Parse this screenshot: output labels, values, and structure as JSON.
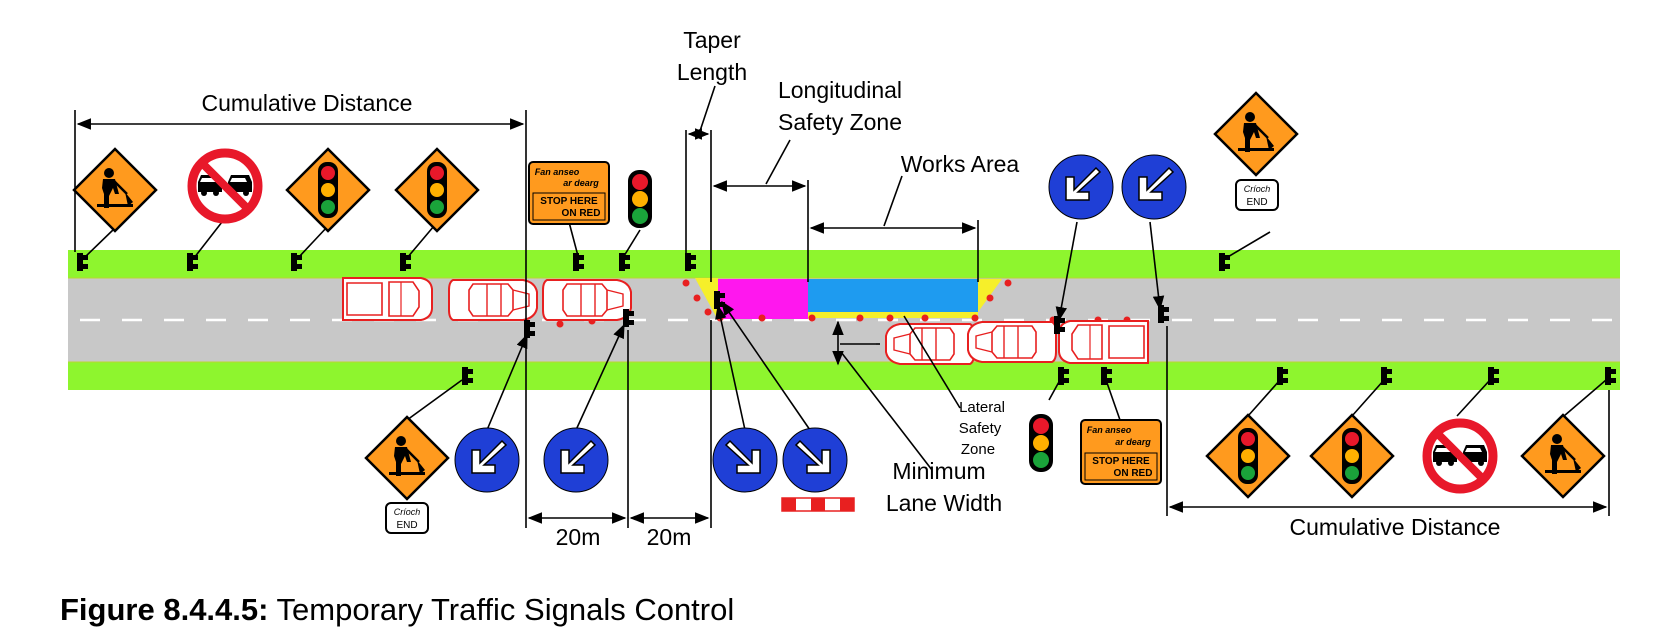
{
  "labels": {
    "cumulative_distance_left": "Cumulative Distance",
    "cumulative_distance_right": "Cumulative Distance",
    "taper_length_line1": "Taper",
    "taper_length_line2": "Length",
    "longitudinal_line1": "Longitudinal",
    "longitudinal_line2": "Safety Zone",
    "works_area": "Works Area",
    "lateral_line1": "Lateral",
    "lateral_line2": "Safety",
    "lateral_line3": "Zone",
    "minimum_line1": "Minimum",
    "minimum_line2": "Lane Width",
    "dist_20m_a": "20m",
    "dist_20m_b": "20m"
  },
  "signs": {
    "stop_here_line1": "Fan anseo",
    "stop_here_line2": "ar dearg",
    "stop_here_line3": "STOP HERE",
    "stop_here_line4": "ON RED",
    "end_line1": "Críoch",
    "end_line2": "END"
  },
  "caption": {
    "number": "Figure 8.4.4.5:",
    "title": "Temporary Traffic Signals Control"
  },
  "colors": {
    "verge": "#8ef52e",
    "road": "#c8c8c8",
    "warning_sign": "#ff9a1e",
    "keep_left_sign": "#1f3fd6",
    "prohibition_red": "#e8182a",
    "works_area": "#1e9bf0",
    "taper_zone": "#ff17ee",
    "vehicle_outline": "#e82020"
  }
}
